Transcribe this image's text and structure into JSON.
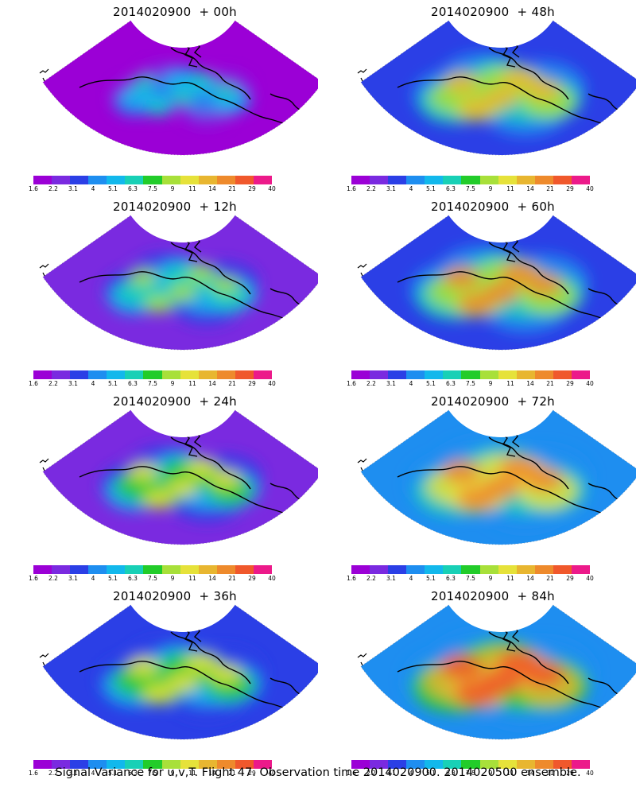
{
  "panels": [
    {
      "title": "2014020900  + 00h",
      "intensity": 0.15
    },
    {
      "title": "2014020900  + 48h",
      "intensity": 0.6
    },
    {
      "title": "2014020900  + 12h",
      "intensity": 0.35
    },
    {
      "title": "2014020900  + 60h",
      "intensity": 0.68
    },
    {
      "title": "2014020900  + 24h",
      "intensity": 0.45
    },
    {
      "title": "2014020900  + 72h",
      "intensity": 0.75
    },
    {
      "title": "2014020900  + 36h",
      "intensity": 0.52
    },
    {
      "title": "2014020900  + 84h",
      "intensity": 0.85
    }
  ],
  "colorbar": {
    "labels": [
      "1.6",
      "2.2",
      "3.1",
      "4",
      "5.1",
      "6.3",
      "7.5",
      "9",
      "11",
      "14",
      "21",
      "29",
      "40"
    ],
    "colors": [
      "#9b00d6",
      "#7a2ae0",
      "#2b3fe6",
      "#1e8ef0",
      "#12b8ec",
      "#18d0b6",
      "#22cc2a",
      "#a8e03a",
      "#e6e23a",
      "#e8b630",
      "#ee8a2c",
      "#f0582c",
      "#ec1a8a"
    ]
  },
  "caption": "Signal Variance for u,v,T. Flight 47. Observation time 2014020900. 2014020500 ensemble."
}
